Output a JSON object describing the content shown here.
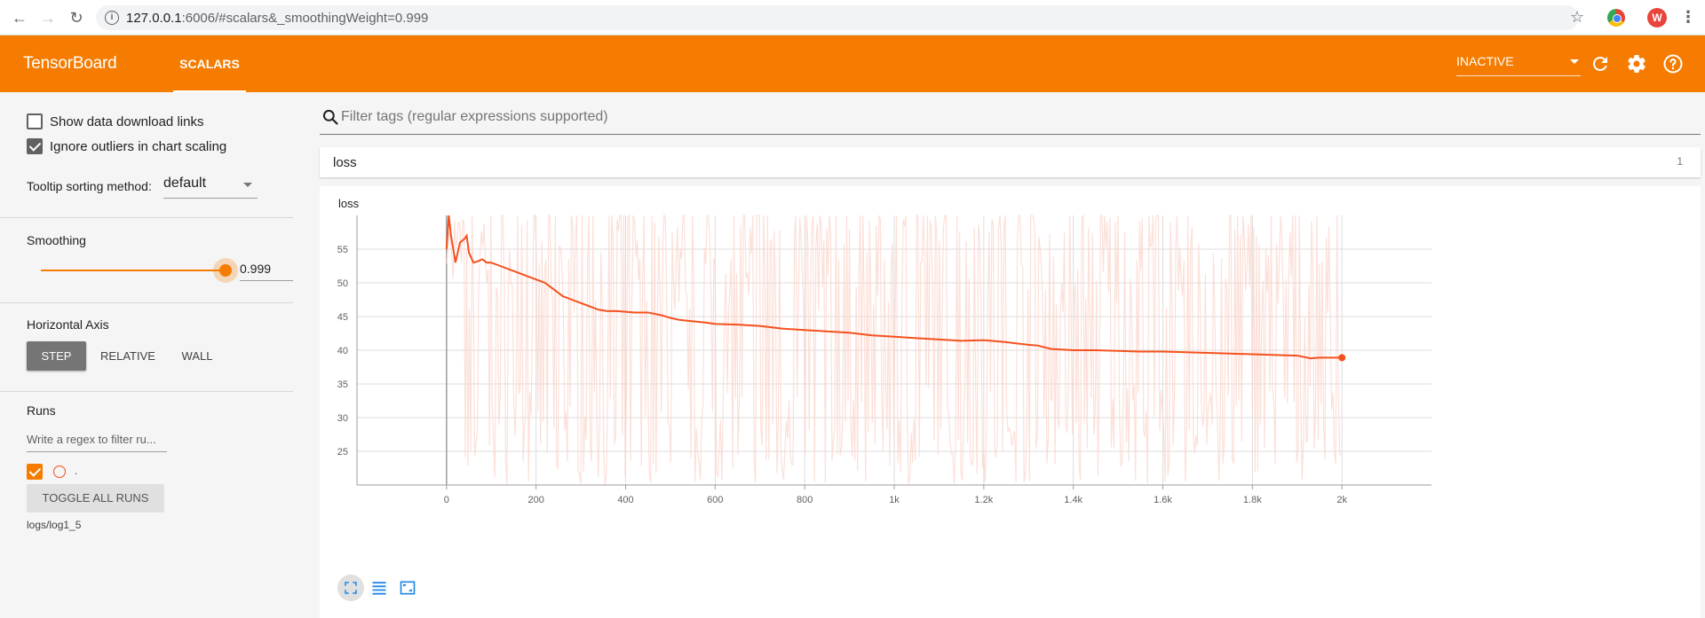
{
  "browser": {
    "url_host": "127.0.0.1",
    "url_rest": ":6006/#scalars&_smoothingWeight=0.999",
    "profile_initial": "W"
  },
  "header": {
    "title": "TensorBoard",
    "tab": "SCALARS",
    "run_status": "INACTIVE"
  },
  "sidebar": {
    "show_download_links": {
      "label": "Show data download links",
      "checked": false
    },
    "ignore_outliers": {
      "label": "Ignore outliers in chart scaling",
      "checked": true
    },
    "tooltip_sorting": {
      "label": "Tooltip sorting method:",
      "value": "default"
    },
    "smoothing": {
      "label": "Smoothing",
      "value": "0.999"
    },
    "horizontal_axis": {
      "label": "Horizontal Axis",
      "options": [
        "STEP",
        "RELATIVE",
        "WALL"
      ],
      "selected": "STEP"
    },
    "runs": {
      "label": "Runs",
      "filter_placeholder": "Write a regex to filter ru...",
      "run_name": ".",
      "toggle_label": "TOGGLE ALL RUNS",
      "log_dir": "logs/log1_5"
    }
  },
  "main": {
    "filter_placeholder": "Filter tags (regular expressions supported)",
    "group": {
      "name": "loss",
      "count": "1"
    },
    "chart_title": "loss"
  },
  "colors": {
    "accent": "#f57c00",
    "smoothed_line": "#f4511e",
    "raw_line": "#fbd6cc"
  },
  "chart_data": {
    "type": "line",
    "title": "loss",
    "xlabel": "",
    "ylabel": "",
    "xlim": [
      -200,
      2200
    ],
    "ylim": [
      20,
      60
    ],
    "x_ticks": [
      0,
      200,
      400,
      600,
      800,
      1000,
      1200,
      1400,
      1600,
      1800,
      2000
    ],
    "x_tick_labels": [
      "0",
      "200",
      "400",
      "600",
      "800",
      "1k",
      "1.2k",
      "1.4k",
      "1.6k",
      "1.8k",
      "2k"
    ],
    "y_ticks": [
      25,
      30,
      35,
      40,
      45,
      50,
      55
    ],
    "y_tick_labels": [
      "25",
      "30",
      "35",
      "40",
      "45",
      "50",
      "55"
    ],
    "grid": true,
    "series": [
      {
        "smoothed": true,
        "x": [
          0,
          5,
          10,
          20,
          30,
          40,
          45,
          50,
          60,
          70,
          80,
          90,
          100,
          120,
          140,
          160,
          180,
          200,
          220,
          240,
          260,
          280,
          300,
          320,
          340,
          360,
          380,
          400,
          420,
          450,
          480,
          500,
          520,
          550,
          580,
          600,
          650,
          700,
          750,
          800,
          850,
          900,
          950,
          1000,
          1050,
          1100,
          1150,
          1200,
          1250,
          1300,
          1320,
          1350,
          1400,
          1450,
          1500,
          1550,
          1600,
          1650,
          1700,
          1750,
          1800,
          1850,
          1900,
          1930,
          1950,
          2000
        ],
        "y": [
          55,
          60,
          57,
          53,
          56,
          56.5,
          57,
          54.5,
          53,
          53.2,
          53.5,
          53,
          53,
          52.5,
          52,
          51.5,
          51,
          50.5,
          50,
          49,
          48,
          47.5,
          47,
          46.5,
          46,
          45.8,
          45.8,
          45.7,
          45.6,
          45.6,
          45.2,
          44.8,
          44.5,
          44.3,
          44.1,
          43.9,
          43.8,
          43.6,
          43.2,
          43,
          42.8,
          42.6,
          42.2,
          42,
          41.8,
          41.6,
          41.4,
          41.5,
          41.2,
          40.8,
          40.7,
          40.2,
          40,
          40,
          39.9,
          39.8,
          39.8,
          39.7,
          39.6,
          39.5,
          39.4,
          39.3,
          39.2,
          38.8,
          38.9,
          38.9
        ]
      }
    ]
  }
}
